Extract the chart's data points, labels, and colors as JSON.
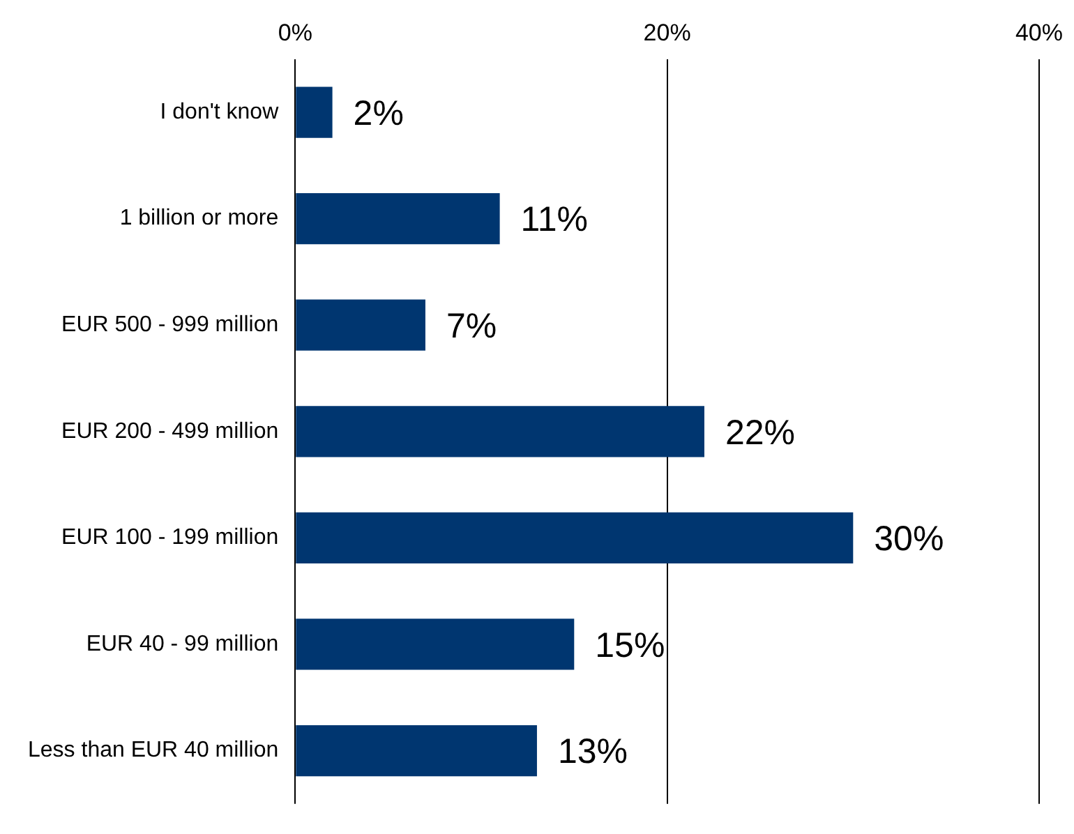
{
  "chart_data": {
    "type": "bar",
    "orientation": "horizontal",
    "categories": [
      "I don't know",
      "1 billion or more",
      "EUR 500 - 999 million",
      "EUR 200 - 499 million",
      "EUR 100 - 199 million",
      "EUR 40 - 99 million",
      "Less than EUR 40 million"
    ],
    "values": [
      2,
      11,
      7,
      22,
      30,
      15,
      13
    ],
    "value_labels": [
      "2%",
      "11%",
      "7%",
      "22%",
      "30%",
      "15%",
      "13%"
    ],
    "color": "#003670",
    "xlim": [
      0,
      40
    ],
    "xticks": [
      {
        "value": 0,
        "label": "0%"
      },
      {
        "value": 20,
        "label": "20%"
      },
      {
        "value": 40,
        "label": "40%"
      }
    ],
    "grid": "x",
    "legend": false
  }
}
